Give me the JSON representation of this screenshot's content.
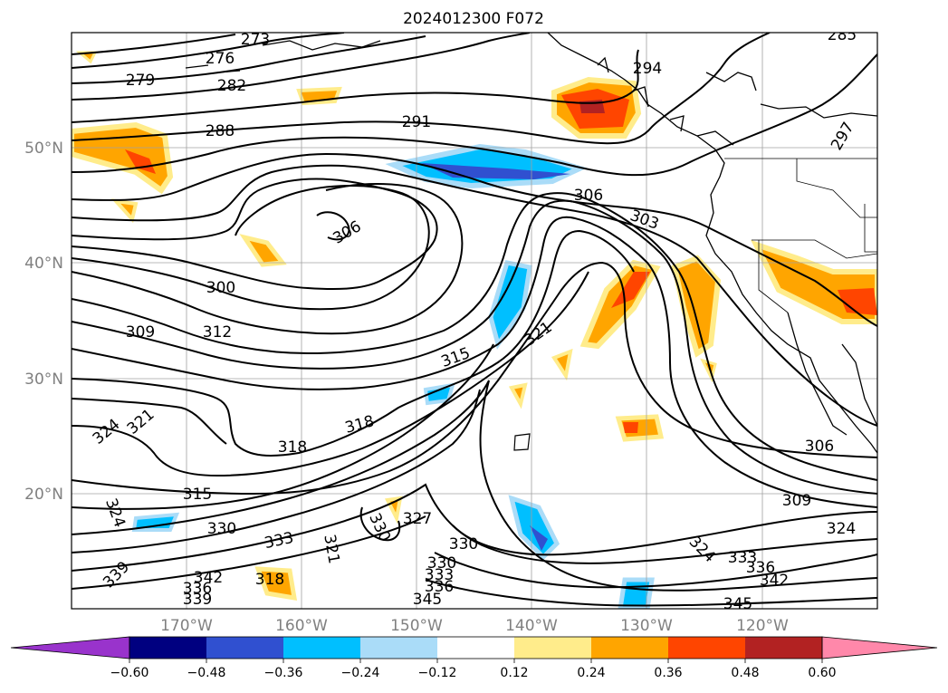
{
  "title": "2024012300 F072",
  "lat_labels": [
    "50°N",
    "40°N",
    "30°N",
    "20°N"
  ],
  "lon_labels": [
    "170°W",
    "160°W",
    "150°W",
    "140°W",
    "130°W",
    "120°W"
  ],
  "contour_labels": [
    "273",
    "276",
    "279",
    "282",
    "288",
    "291",
    "294",
    "297",
    "285",
    "306",
    "303",
    "300",
    "309",
    "312",
    "315",
    "321",
    "318",
    "324",
    "330",
    "327",
    "333",
    "336",
    "339",
    "342",
    "345"
  ],
  "colorbar": {
    "ticks": [
      "−0.60",
      "−0.48",
      "−0.36",
      "−0.24",
      "−0.12",
      "0.12",
      "0.24",
      "0.36",
      "0.48",
      "0.60"
    ],
    "colors": [
      "#9933cc",
      "#000080",
      "#3050d0",
      "#00bfff",
      "#aadcf8",
      "#ffffff",
      "#ffec8b",
      "#ffa500",
      "#ff4500",
      "#b22222",
      "#ff88aa"
    ]
  }
}
